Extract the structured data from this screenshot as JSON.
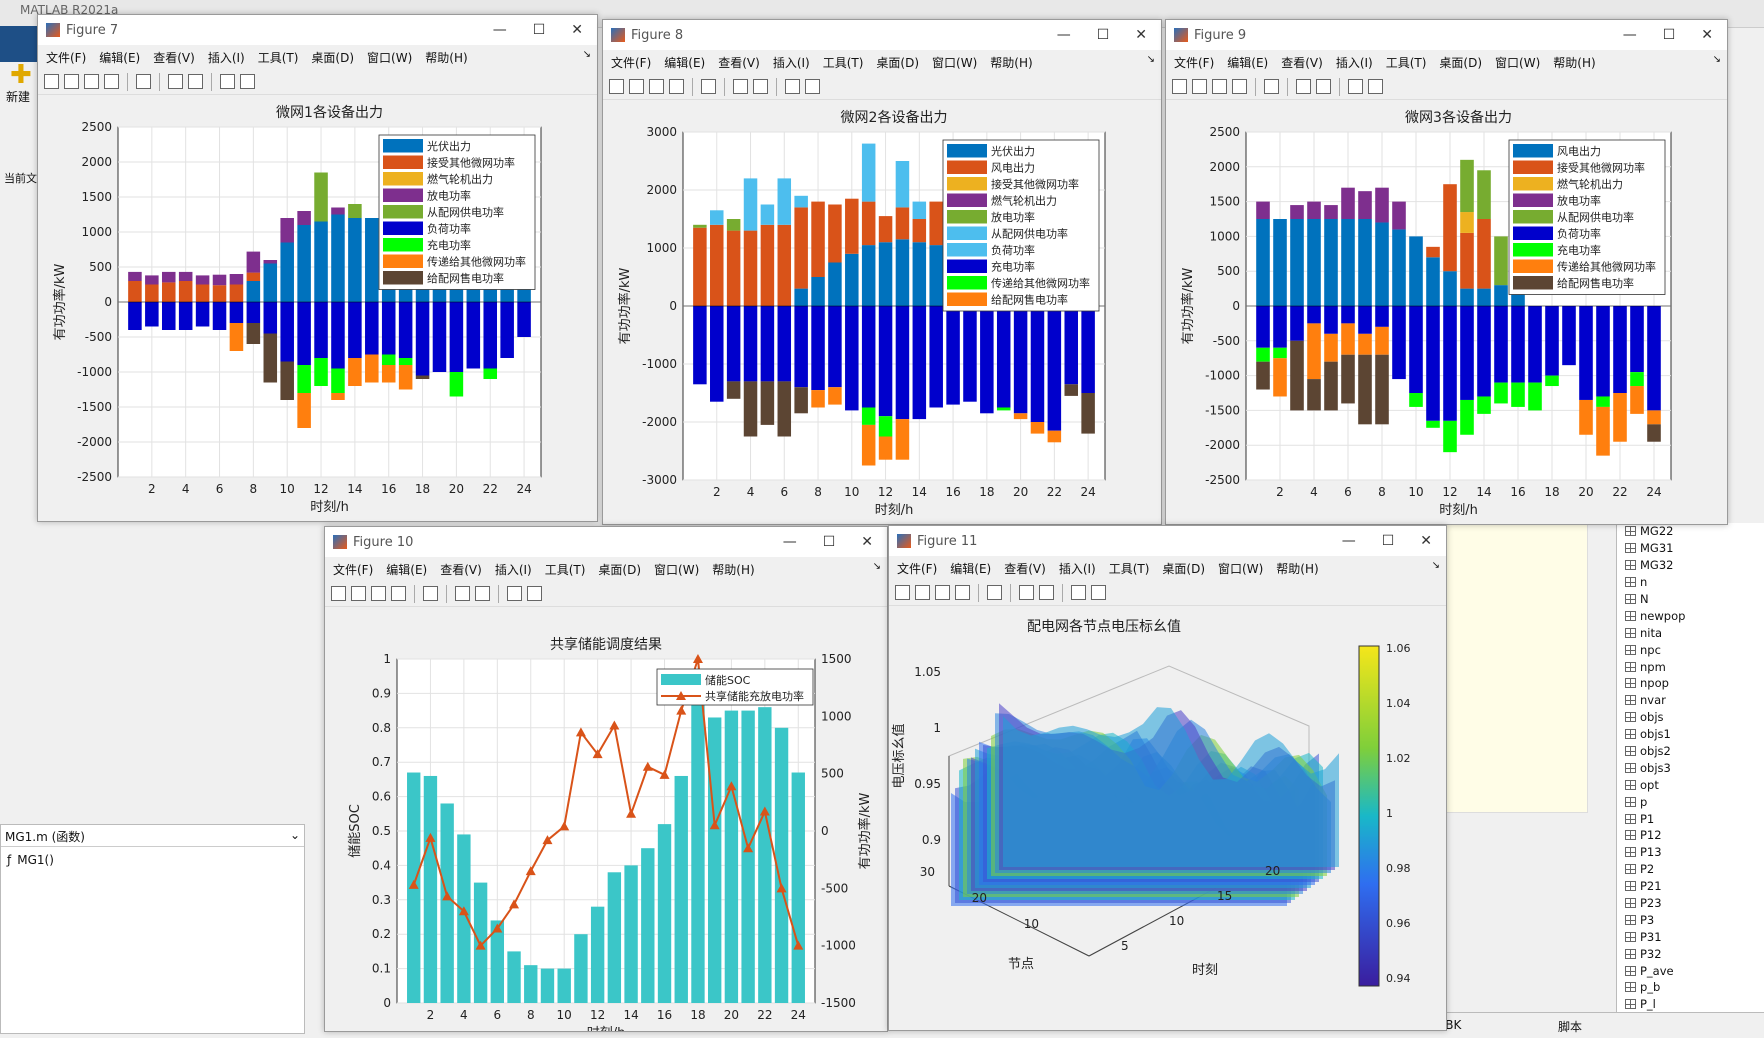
{
  "app": {
    "title": "MATLAB R2021a",
    "new_label": "新建",
    "current": "当前文"
  },
  "menu": [
    "文件(F)",
    "编辑(E)",
    "查看(V)",
    "插入(I)",
    "工具(T)",
    "桌面(D)",
    "窗口(W)",
    "帮助(H)"
  ],
  "left_panel": {
    "file": "MG1.m  (函数)",
    "func": "MG1()"
  },
  "status": {
    "enc": "GBK",
    "mode": "脚本"
  },
  "workspace_vars": [
    "MG22",
    "MG31",
    "MG32",
    "n",
    "N",
    "newpop",
    "nita",
    "npc",
    "npm",
    "npop",
    "nvar",
    "objs",
    "objs1",
    "objs2",
    "objs3",
    "opt",
    "p",
    "P1",
    "P12",
    "P13",
    "P2",
    "P21",
    "P23",
    "P3",
    "P31",
    "P32",
    "P_ave",
    "p_b",
    "P_l"
  ],
  "colors": {
    "c1": "#0072BD",
    "c2": "#D95319",
    "c3": "#EDB120",
    "c4": "#7E2F8E",
    "c5": "#77AC30",
    "c6": "#4DBEEE",
    "neg": "#0000CC",
    "green": "#00FF00",
    "orange": "#FF7F0E",
    "brown": "#5C4533"
  },
  "fig7": {
    "title": "Figure 7",
    "chart_data": {
      "type": "bar",
      "title": "微网1各设备出力",
      "xlabel": "时刻/h",
      "ylabel": "有功功率/kW",
      "ylim": [
        -2500,
        2500
      ],
      "yticks": [
        "2500",
        "2000",
        "1500",
        "1000",
        "500",
        "0",
        "-500",
        "-1000",
        "-1500",
        "-2000",
        "-2500"
      ],
      "xticks": [
        "2",
        "4",
        "6",
        "8",
        "10",
        "12",
        "14",
        "16",
        "18",
        "20",
        "22",
        "24"
      ],
      "legend": [
        "光伏出力",
        "接受其他微网功率",
        "燃气轮机出力",
        "放电功率",
        "从配网供电功率",
        "负荷功率",
        "充电功率",
        "传递给其他微网功率",
        "给配网售电功率"
      ],
      "pos": [
        [
          0,
          300,
          0,
          130,
          0
        ],
        [
          0,
          250,
          0,
          130,
          0
        ],
        [
          0,
          280,
          0,
          150,
          0
        ],
        [
          0,
          300,
          0,
          130,
          0
        ],
        [
          0,
          250,
          0,
          130,
          0
        ],
        [
          0,
          240,
          0,
          150,
          0
        ],
        [
          0,
          250,
          0,
          150,
          0
        ],
        [
          300,
          120,
          0,
          300,
          0
        ],
        [
          550,
          0,
          0,
          50,
          0
        ],
        [
          850,
          0,
          0,
          350,
          0
        ],
        [
          1100,
          0,
          0,
          200,
          0
        ],
        [
          1150,
          0,
          0,
          0,
          700
        ],
        [
          1250,
          0,
          0,
          100,
          0
        ],
        [
          1200,
          0,
          0,
          0,
          200
        ],
        [
          1200,
          0,
          0,
          0,
          0
        ],
        [
          1150,
          0,
          0,
          0,
          0
        ],
        [
          1100,
          0,
          0,
          0,
          0
        ],
        [
          1000,
          0,
          0,
          0,
          0
        ],
        [
          900,
          0,
          0,
          0,
          0
        ],
        [
          800,
          0,
          0,
          0,
          0
        ],
        [
          650,
          0,
          0,
          0,
          0
        ],
        [
          500,
          0,
          0,
          0,
          0
        ],
        [
          350,
          0,
          0,
          0,
          0
        ],
        [
          500,
          0,
          0,
          0,
          0
        ]
      ],
      "neg": [
        [
          -400,
          0,
          0,
          0
        ],
        [
          -350,
          0,
          0,
          0
        ],
        [
          -400,
          0,
          0,
          0
        ],
        [
          -400,
          0,
          0,
          0
        ],
        [
          -350,
          0,
          0,
          0
        ],
        [
          -400,
          0,
          0,
          0
        ],
        [
          -300,
          0,
          400,
          0
        ],
        [
          -300,
          0,
          0,
          300
        ],
        [
          -450,
          0,
          0,
          700
        ],
        [
          -850,
          0,
          0,
          550
        ],
        [
          -900,
          400,
          500,
          0
        ],
        [
          -800,
          400,
          0,
          0
        ],
        [
          -950,
          350,
          100,
          0
        ],
        [
          -800,
          0,
          400,
          0
        ],
        [
          -750,
          0,
          400,
          0
        ],
        [
          -750,
          150,
          250,
          0
        ],
        [
          -800,
          100,
          350,
          0
        ],
        [
          -1050,
          0,
          0,
          50
        ],
        [
          -1000,
          0,
          0,
          0
        ],
        [
          -1000,
          350,
          0,
          0
        ],
        [
          -950,
          0,
          0,
          0
        ],
        [
          -950,
          150,
          0,
          0
        ],
        [
          -800,
          0,
          0,
          0
        ],
        [
          -500,
          0,
          0,
          0
        ]
      ]
    }
  },
  "fig8": {
    "title": "Figure 8",
    "chart_data": {
      "type": "bar",
      "title": "微网2各设备出力",
      "xlabel": "时刻/h",
      "ylabel": "有功功率/kW",
      "ylim": [
        -3000,
        3000
      ],
      "yticks": [
        "3000",
        "2000",
        "1000",
        "0",
        "-1000",
        "-2000",
        "-3000"
      ],
      "xticks": [
        "2",
        "4",
        "6",
        "8",
        "10",
        "12",
        "14",
        "16",
        "18",
        "20",
        "22",
        "24"
      ],
      "legend": [
        "光伏出力",
        "风电出力",
        "接受其他微网功率",
        "燃气轮机出力",
        "放电功率",
        "从配网供电功率",
        "负荷功率",
        "充电功率",
        "传递给其他微网功率",
        "给配网售电功率"
      ],
      "pos": [
        [
          0,
          1350,
          0,
          0,
          50,
          0,
          0
        ],
        [
          0,
          1400,
          0,
          0,
          0,
          0,
          250
        ],
        [
          0,
          1300,
          0,
          0,
          200,
          0,
          0
        ],
        [
          0,
          1300,
          0,
          0,
          0,
          0,
          900
        ],
        [
          0,
          1400,
          0,
          0,
          0,
          0,
          350
        ],
        [
          0,
          1400,
          0,
          0,
          0,
          0,
          800
        ],
        [
          300,
          1400,
          0,
          0,
          0,
          0,
          200
        ],
        [
          500,
          1300,
          0,
          0,
          0,
          0,
          0
        ],
        [
          750,
          1000,
          0,
          0,
          0,
          0,
          0
        ],
        [
          900,
          950,
          0,
          0,
          0,
          0,
          0
        ],
        [
          1050,
          750,
          0,
          0,
          0,
          1000,
          0
        ],
        [
          1100,
          450,
          0,
          0,
          0,
          0,
          0
        ],
        [
          1150,
          550,
          0,
          0,
          0,
          800,
          0
        ],
        [
          1100,
          400,
          0,
          0,
          0,
          0,
          300
        ],
        [
          1050,
          750,
          0,
          0,
          0,
          0,
          0
        ],
        [
          1000,
          750,
          0,
          0,
          0,
          0,
          0
        ],
        [
          850,
          950,
          0,
          0,
          0,
          0,
          0
        ],
        [
          750,
          1100,
          0,
          0,
          0,
          0,
          0
        ],
        [
          600,
          1200,
          0,
          0,
          0,
          0,
          0
        ],
        [
          400,
          1350,
          0,
          0,
          0,
          0,
          0
        ],
        [
          200,
          1500,
          0,
          0,
          0,
          0,
          0
        ],
        [
          50,
          1700,
          0,
          0,
          0,
          0,
          0
        ],
        [
          0,
          1900,
          0,
          0,
          0,
          0,
          0
        ],
        [
          0,
          2100,
          0,
          0,
          0,
          0,
          200
        ]
      ],
      "neg": [
        [
          -1350,
          0,
          0,
          0
        ],
        [
          -1650,
          0,
          0,
          0
        ],
        [
          -1300,
          0,
          0,
          300
        ],
        [
          -1300,
          0,
          0,
          950
        ],
        [
          -1300,
          0,
          0,
          750
        ],
        [
          -1300,
          0,
          0,
          950
        ],
        [
          -1400,
          0,
          0,
          450
        ],
        [
          -1450,
          0,
          300,
          0
        ],
        [
          -1400,
          0,
          300,
          0
        ],
        [
          -1800,
          0,
          0,
          0
        ],
        [
          -1750,
          300,
          700,
          0
        ],
        [
          -1900,
          350,
          400,
          0
        ],
        [
          -1950,
          0,
          700,
          0
        ],
        [
          -1950,
          0,
          0,
          0
        ],
        [
          -1750,
          0,
          0,
          0
        ],
        [
          -1700,
          0,
          0,
          0
        ],
        [
          -1650,
          0,
          0,
          0
        ],
        [
          -1850,
          0,
          0,
          0
        ],
        [
          -1750,
          50,
          0,
          0
        ],
        [
          -1850,
          0,
          100,
          0
        ],
        [
          -2000,
          0,
          200,
          0
        ],
        [
          -2150,
          0,
          200,
          0
        ],
        [
          -1350,
          0,
          0,
          200
        ],
        [
          -1500,
          0,
          0,
          700
        ]
      ]
    }
  },
  "fig9": {
    "title": "Figure 9",
    "chart_data": {
      "type": "bar",
      "title": "微网3各设备出力",
      "xlabel": "时刻/h",
      "ylabel": "有功功率/kW",
      "ylim": [
        -2500,
        2500
      ],
      "yticks": [
        "2500",
        "2000",
        "1500",
        "1000",
        "500",
        "0",
        "-500",
        "-1000",
        "-1500",
        "-2000",
        "-2500"
      ],
      "xticks": [
        "2",
        "4",
        "6",
        "8",
        "10",
        "12",
        "14",
        "16",
        "18",
        "20",
        "22",
        "24"
      ],
      "legend": [
        "风电出力",
        "接受其他微网功率",
        "燃气轮机出力",
        "放电功率",
        "从配网供电功率",
        "负荷功率",
        "充电功率",
        "传递给其他微网功率",
        "给配网售电功率"
      ],
      "pos": [
        [
          1250,
          0,
          0,
          250,
          0
        ],
        [
          1250,
          0,
          0,
          0,
          0
        ],
        [
          1250,
          0,
          0,
          200,
          0
        ],
        [
          1250,
          0,
          0,
          250,
          0
        ],
        [
          1250,
          0,
          0,
          200,
          0
        ],
        [
          1250,
          0,
          0,
          450,
          0
        ],
        [
          1250,
          0,
          0,
          400,
          0
        ],
        [
          1200,
          0,
          0,
          500,
          0
        ],
        [
          1100,
          0,
          0,
          400,
          0
        ],
        [
          1000,
          0,
          0,
          0,
          0
        ],
        [
          700,
          150,
          0,
          0,
          0
        ],
        [
          500,
          1250,
          0,
          0,
          0
        ],
        [
          250,
          800,
          300,
          0,
          750
        ],
        [
          250,
          1000,
          0,
          0,
          700
        ],
        [
          300,
          0,
          0,
          0,
          700
        ],
        [
          250,
          0,
          0,
          0,
          0
        ],
        [
          0,
          0,
          0,
          0,
          0
        ],
        [
          0,
          0,
          0,
          0,
          0
        ],
        [
          0,
          0,
          0,
          0,
          0
        ],
        [
          0,
          0,
          0,
          0,
          0
        ],
        [
          0,
          0,
          0,
          0,
          0
        ],
        [
          0,
          0,
          0,
          0,
          0
        ],
        [
          0,
          0,
          0,
          0,
          0
        ],
        [
          0,
          0,
          0,
          0,
          0
        ]
      ],
      "neg": [
        [
          -600,
          200,
          0,
          400
        ],
        [
          -600,
          150,
          550,
          0
        ],
        [
          -500,
          0,
          0,
          1000
        ],
        [
          -250,
          0,
          800,
          450
        ],
        [
          -400,
          0,
          400,
          700
        ],
        [
          -250,
          0,
          450,
          700
        ],
        [
          -400,
          0,
          300,
          1000
        ],
        [
          -300,
          0,
          400,
          1000
        ],
        [
          -1050,
          0,
          0,
          0
        ],
        [
          -1250,
          200,
          0,
          0
        ],
        [
          -1650,
          100,
          0,
          0
        ],
        [
          -1650,
          450,
          0,
          0
        ],
        [
          -1350,
          500,
          0,
          0
        ],
        [
          -1300,
          250,
          0,
          0
        ],
        [
          -1100,
          300,
          0,
          0
        ],
        [
          -1100,
          350,
          0,
          0
        ],
        [
          -1100,
          400,
          0,
          0
        ],
        [
          -1000,
          150,
          0,
          0
        ],
        [
          -850,
          0,
          0,
          0
        ],
        [
          -1350,
          0,
          500,
          0
        ],
        [
          -1300,
          150,
          700,
          0
        ],
        [
          -1250,
          0,
          700,
          0
        ],
        [
          -950,
          200,
          400,
          0
        ],
        [
          -1500,
          0,
          200,
          250
        ]
      ]
    }
  },
  "fig10": {
    "title": "Figure 10",
    "chart_data": {
      "type": "bar",
      "title": "共享储能调度结果",
      "xlabel": "时刻/h",
      "ylabel": "储能SOC",
      "ylabel_right": "有功功率/kW",
      "ylim": [
        0,
        1
      ],
      "ylim_right": [
        -1500,
        1500
      ],
      "yticks": [
        "1",
        "0.9",
        "0.8",
        "0.7",
        "0.6",
        "0.5",
        "0.4",
        "0.3",
        "0.2",
        "0.1",
        "0"
      ],
      "yticks_right": [
        "1500",
        "1000",
        "500",
        "0",
        "-500",
        "-1000",
        "-1500"
      ],
      "xticks": [
        "2",
        "4",
        "6",
        "8",
        "10",
        "12",
        "14",
        "16",
        "18",
        "20",
        "22",
        "24"
      ],
      "legend": [
        "储能SOC",
        "共享储能充放电功率"
      ],
      "soc": [
        0.67,
        0.66,
        0.58,
        0.49,
        0.35,
        0.24,
        0.15,
        0.11,
        0.1,
        0.1,
        0.2,
        0.28,
        0.38,
        0.4,
        0.45,
        0.52,
        0.66,
        0.9,
        0.83,
        0.85,
        0.85,
        0.86,
        0.8,
        0.67
      ],
      "power": [
        -470,
        -60,
        -570,
        -700,
        -1000,
        -850,
        -640,
        -350,
        -80,
        40,
        860,
        670,
        920,
        150,
        560,
        490,
        1050,
        1500,
        50,
        390,
        -150,
        170,
        -500,
        -1000
      ]
    }
  },
  "fig11": {
    "title": "Figure 11",
    "chart_data": {
      "type": "surface",
      "title": "配电网各节点电压标幺值",
      "xlabel": "时刻",
      "ylabel": "节点",
      "zlabel": "电压标幺值",
      "zticks": [
        "1.05",
        "1",
        "0.95",
        "0.9"
      ],
      "xticks": [
        "5",
        "10",
        "15",
        "20"
      ],
      "yticks": [
        "10",
        "20",
        "30"
      ],
      "colorbar": [
        "1.06",
        "1.04",
        "1.02",
        "1",
        "0.98",
        "0.96",
        "0.94"
      ]
    }
  }
}
